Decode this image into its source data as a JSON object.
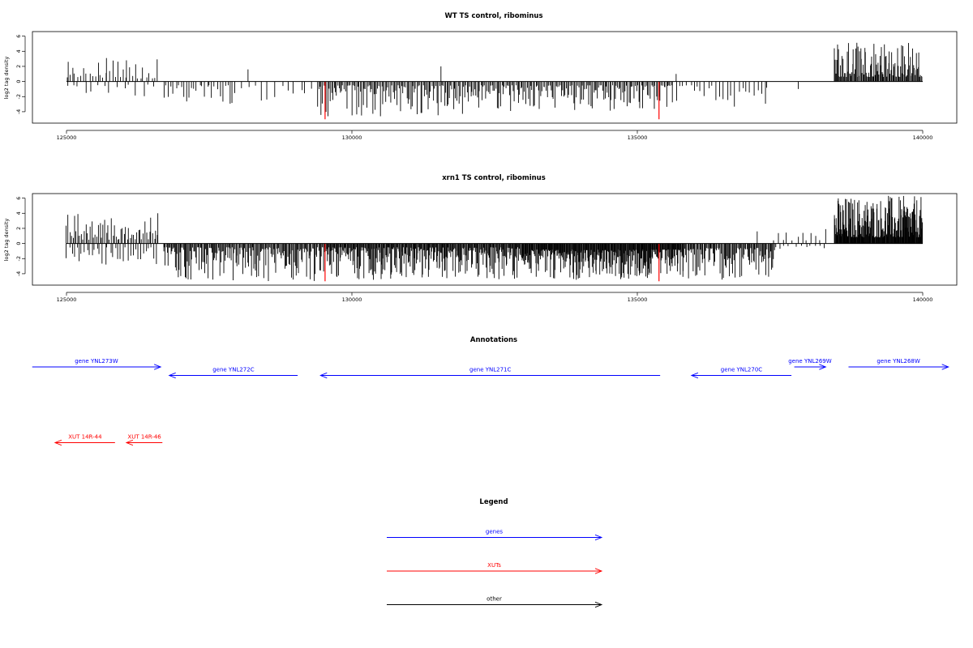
{
  "colors": {
    "gene": "#0000ff",
    "xut": "#ff0000",
    "other": "#000000",
    "highlight": "#ff0000",
    "bar": "#000000"
  },
  "chart_data": [
    {
      "type": "bar",
      "title": "WT TS control, ribominus",
      "xlabel": "",
      "ylabel": "log2 tag density",
      "xlim": [
        125000,
        140000
      ],
      "ylim": [
        -5,
        7
      ],
      "xticks": [
        "125000",
        "130000",
        "135000",
        "140000"
      ],
      "yticks": [
        "6",
        "4",
        "2",
        "0",
        "-2",
        "-4"
      ],
      "highlights": [
        {
          "x": 129530,
          "y": -5.0
        },
        {
          "x": 135380,
          "y": -5.0
        }
      ],
      "segments": [
        {
          "from": 125000,
          "to": 126600,
          "step": 50,
          "min": 0.4,
          "max": 3.0,
          "sign": 1
        },
        {
          "from": 125000,
          "to": 126600,
          "step": 110,
          "min": 0.4,
          "max": 3.0,
          "sign": -1
        },
        {
          "from": 126700,
          "to": 128000,
          "step": 45,
          "min": 0.5,
          "max": 3.0,
          "sign": -1
        },
        {
          "from": 128100,
          "to": 129400,
          "step": 110,
          "min": 0.4,
          "max": 2.6,
          "sign": -1
        },
        {
          "from": 129400,
          "to": 132300,
          "step": 22,
          "min": 0.5,
          "max": 4.6,
          "sign": -1
        },
        {
          "from": 132300,
          "to": 135600,
          "step": 22,
          "min": 0.5,
          "max": 4.0,
          "sign": -1
        },
        {
          "from": 135600,
          "to": 137300,
          "step": 65,
          "min": 0.5,
          "max": 3.4,
          "sign": -1
        },
        {
          "from": 138450,
          "to": 140000,
          "step": 14,
          "min": 0.6,
          "max": 5.3,
          "sign": 1
        }
      ],
      "peaks": [
        {
          "x": 125030,
          "y": 2.6
        },
        {
          "x": 125700,
          "y": 3.1
        },
        {
          "x": 126050,
          "y": 2.8
        },
        {
          "x": 128180,
          "y": 1.6
        },
        {
          "x": 131560,
          "y": 2.0
        },
        {
          "x": 135680,
          "y": 1.0
        },
        {
          "x": 137820,
          "y": -1.0
        },
        {
          "x": 130500,
          "y": -4.6
        }
      ]
    },
    {
      "type": "bar",
      "title": "xrn1 TS control, ribominus",
      "xlabel": "",
      "ylabel": "log2 tag density",
      "xlim": [
        125000,
        140000
      ],
      "ylim": [
        -5,
        7
      ],
      "xticks": [
        "125000",
        "130000",
        "135000",
        "140000"
      ],
      "yticks": [
        "6",
        "4",
        "2",
        "0",
        "-2",
        "-4"
      ],
      "highlights": [
        {
          "x": 129530,
          "y": -5.0
        },
        {
          "x": 135380,
          "y": -5.0
        }
      ],
      "segments": [
        {
          "from": 125000,
          "to": 126600,
          "step": 28,
          "min": 0.5,
          "max": 3.9,
          "sign": 1
        },
        {
          "from": 125000,
          "to": 126600,
          "step": 45,
          "min": 0.5,
          "max": 3.0,
          "sign": -1
        },
        {
          "from": 126700,
          "to": 129500,
          "step": 16,
          "min": 0.5,
          "max": 5.0,
          "sign": -1
        },
        {
          "from": 129500,
          "to": 133000,
          "step": 12,
          "min": 0.5,
          "max": 4.8,
          "sign": -1
        },
        {
          "from": 133000,
          "to": 135800,
          "step": 10,
          "min": 0.8,
          "max": 4.8,
          "sign": -1
        },
        {
          "from": 135800,
          "to": 137400,
          "step": 16,
          "min": 0.6,
          "max": 4.8,
          "sign": -1
        },
        {
          "from": 137400,
          "to": 138200,
          "step": 80,
          "min": 0.4,
          "max": 1.6,
          "sign": 1
        },
        {
          "from": 137400,
          "to": 138300,
          "step": 90,
          "min": 0.3,
          "max": 1.2,
          "sign": -1
        },
        {
          "from": 138450,
          "to": 140000,
          "step": 8,
          "min": 0.8,
          "max": 6.3,
          "sign": 1
        }
      ],
      "peaks": [
        {
          "x": 126600,
          "y": 4.0
        },
        {
          "x": 125200,
          "y": 3.9
        },
        {
          "x": 137100,
          "y": 1.6
        },
        {
          "x": 137300,
          "y": -4.4
        },
        {
          "x": 139400,
          "y": 6.3
        },
        {
          "x": 138300,
          "y": 1.9
        }
      ]
    }
  ],
  "annotations": {
    "title": "Annotations",
    "xlim": [
      125000,
      140000
    ],
    "genes": [
      {
        "label": "gene YNL273W",
        "from": 124400,
        "to": 126650,
        "strand": "+",
        "row": 1
      },
      {
        "label": "gene YNL272C",
        "from": 126800,
        "to": 129050,
        "strand": "-",
        "row": 2
      },
      {
        "label": "gene YNL271C",
        "from": 129450,
        "to": 135400,
        "strand": "-",
        "row": 2
      },
      {
        "label": "gene YNL270C",
        "from": 135950,
        "to": 137700,
        "strand": "-",
        "row": 2
      },
      {
        "label": "gene YNL269W",
        "from": 137750,
        "to": 138300,
        "strand": "+",
        "row": 1
      },
      {
        "label": "gene YNL268W",
        "from": 138700,
        "to": 140450,
        "strand": "+",
        "row": 1
      }
    ],
    "xuts": [
      {
        "label": "XUT 14R-44",
        "from": 124800,
        "to": 125850,
        "strand": "-"
      },
      {
        "label": "XUT 14R-46",
        "from": 126050,
        "to": 126680,
        "strand": "-"
      }
    ]
  },
  "legend": {
    "title": "Legend",
    "items": [
      {
        "label": "genes",
        "color": "#0000ff"
      },
      {
        "label": "XUTs",
        "color": "#ff0000"
      },
      {
        "label": "other",
        "color": "#000000"
      }
    ]
  }
}
